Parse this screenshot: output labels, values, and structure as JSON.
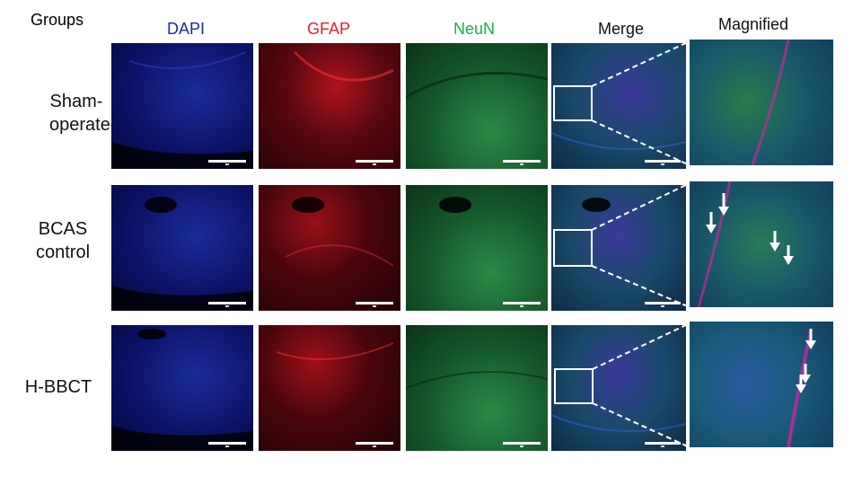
{
  "header": {
    "groups": "Groups",
    "columns": [
      {
        "label": "DAPI",
        "color": "#1a2aa0"
      },
      {
        "label": "GFAP",
        "color": "#e8202a"
      },
      {
        "label": "NeuN",
        "color": "#19b04a"
      },
      {
        "label": "Merge",
        "color": "#111111"
      },
      {
        "label": "Magnified",
        "color": "#111111"
      }
    ]
  },
  "rows": [
    {
      "label_line1": "Sham-",
      "label_line2": "operated"
    },
    {
      "label_line1": "BCAS",
      "label_line2": "control"
    },
    {
      "label_line1": "H-BBCT",
      "label_line2": ""
    }
  ],
  "colors": {
    "dapi_bg": "#0b1163",
    "gfap_bg": "#3a0508",
    "neun_bg": "#0d3a1c",
    "merge_bg": "#122a52",
    "magnified_bg": "#1c4a6a",
    "arrow": "#ffffff",
    "zoom_box": "#ffffff"
  },
  "icons": {
    "arrow": "down-arrow-icon",
    "zoom_box": "zoom-region-box",
    "scale_bar": "scale-bar"
  },
  "arrows_per_row": [
    0,
    4,
    3
  ]
}
